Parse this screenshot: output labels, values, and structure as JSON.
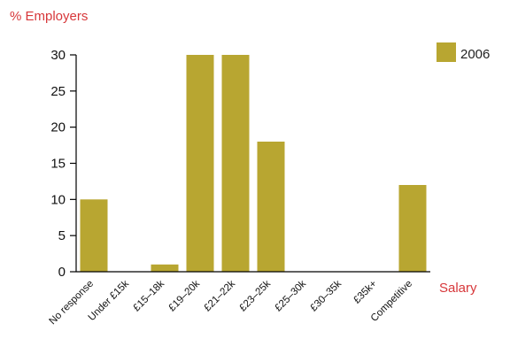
{
  "chart_data": {
    "type": "bar",
    "ylabel": "% Employers",
    "xlabel": "Salary",
    "categories": [
      "No response",
      "Under £15k",
      "£15–18k",
      "£19–20k",
      "£21–22k",
      "£23–25k",
      "£25–30k",
      "£30–35k",
      "£35k+",
      "Competitive"
    ],
    "series": [
      {
        "name": "2006",
        "values": [
          10,
          0,
          1,
          30,
          30,
          18,
          0,
          0,
          0,
          12
        ]
      }
    ],
    "ylim": [
      0,
      30
    ],
    "yticks": [
      "0",
      "5",
      "10",
      "15",
      "20",
      "25",
      "30"
    ],
    "grid": false,
    "legend_position": "top-right",
    "colors": {
      "bar": "#b8a631",
      "axis_title": "#d7373a",
      "axis": "#000000"
    }
  }
}
